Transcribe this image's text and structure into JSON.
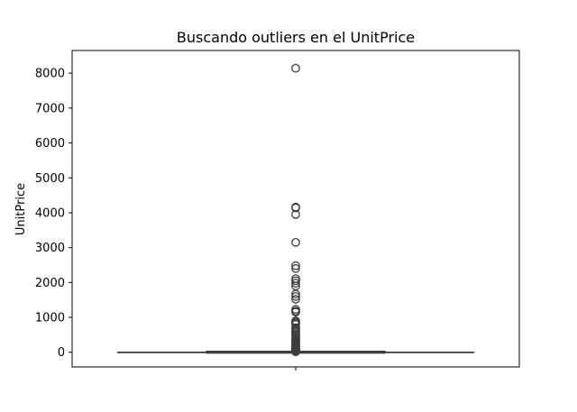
{
  "chart_data": {
    "type": "box",
    "title": "Buscando outliers en el UnitPrice",
    "xlabel": "",
    "ylabel": "UnitPrice",
    "ylim": [
      -420,
      8650
    ],
    "yticks": [
      0,
      1000,
      2000,
      3000,
      4000,
      5000,
      6000,
      7000,
      8000
    ],
    "ytick_labels": [
      "0",
      "1000",
      "2000",
      "3000",
      "4000",
      "5000",
      "6000",
      "7000",
      "8000"
    ],
    "grid": false,
    "box": {
      "whisker_low": 0,
      "q1": 0,
      "median": 2,
      "q3": 4,
      "whisker_high": 10
    },
    "outliers": [
      8140,
      4160,
      4140,
      3950,
      3150,
      2480,
      2400,
      2110,
      2050,
      1980,
      1900,
      1670,
      1600,
      1520,
      1230,
      1180,
      1150,
      900,
      870,
      840,
      800,
      700,
      660,
      620,
      580,
      540,
      500,
      460,
      420,
      380,
      340,
      300,
      270,
      240,
      210,
      180,
      150,
      130,
      110,
      95,
      80,
      65,
      55,
      45,
      38,
      30,
      24,
      18,
      14
    ],
    "colors": {
      "box_fill": "#3f72b0",
      "line": "#3d3d3d",
      "outlier_edge": "#3d3d3d",
      "axes": "#000000"
    }
  }
}
